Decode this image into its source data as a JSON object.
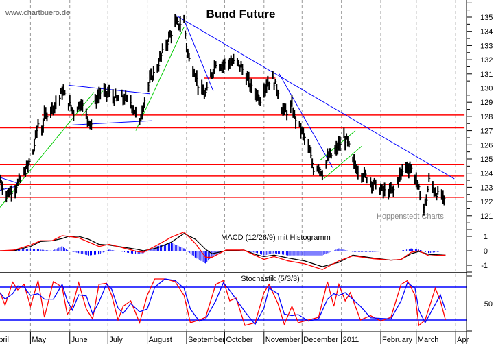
{
  "source_label": "www.chartbuero.de",
  "watermark": "Hoppenstedt Charts",
  "colors": {
    "bar": "#000000",
    "support": "#ff0000",
    "trend": "#0000ff",
    "channel": "#00cc00",
    "grid": "#999999"
  },
  "chart_data": [
    {
      "type": "ohlc-bar",
      "title": "Bund Future",
      "ylim": [
        120,
        136
      ],
      "y_ticks": [
        "121",
        "122",
        "123",
        "124",
        "125",
        "126",
        "127",
        "128",
        "129",
        "130",
        "131",
        "132",
        "133",
        "134",
        "135"
      ],
      "x_ticks": [
        {
          "date": "2010-04-01",
          "label": "April"
        },
        {
          "date": "2010-05-01",
          "label": "May"
        },
        {
          "date": "2010-06-01",
          "label": "June"
        },
        {
          "date": "2010-07-01",
          "label": "July"
        },
        {
          "date": "2010-08-01",
          "label": "August"
        },
        {
          "date": "2010-09-01",
          "label": "September"
        },
        {
          "date": "2010-10-01",
          "label": "October"
        },
        {
          "date": "2010-11-01",
          "label": "November"
        },
        {
          "date": "2010-12-01",
          "label": "December"
        },
        {
          "date": "2011-01-01",
          "label": "2011"
        },
        {
          "date": "2011-02-01",
          "label": "February"
        },
        {
          "date": "2011-03-01",
          "label": "March"
        },
        {
          "date": "2011-04-01",
          "label": "Apr"
        }
      ],
      "close": [
        [
          "2010-04-07",
          123.5
        ],
        [
          "2010-04-12",
          122.5
        ],
        [
          "2010-04-19",
          123
        ],
        [
          "2010-04-23",
          123.5
        ],
        [
          "2010-04-29",
          124.5
        ],
        [
          "2010-05-03",
          125.5
        ],
        [
          "2010-05-07",
          127.5
        ],
        [
          "2010-05-10",
          127
        ],
        [
          "2010-05-12",
          128
        ],
        [
          "2010-05-17",
          128.5
        ],
        [
          "2010-05-24",
          129.3
        ],
        [
          "2010-05-26",
          129.8
        ],
        [
          "2010-05-31",
          129
        ],
        [
          "2010-06-04",
          128.3
        ],
        [
          "2010-06-10",
          129
        ],
        [
          "2010-06-14",
          128
        ],
        [
          "2010-06-18",
          127.5
        ],
        [
          "2010-06-21",
          129
        ],
        [
          "2010-06-25",
          129.7
        ],
        [
          "2010-07-02",
          129.6
        ],
        [
          "2010-07-08",
          129.2
        ],
        [
          "2010-07-13",
          129.3
        ],
        [
          "2010-07-19",
          129
        ],
        [
          "2010-07-23",
          128.2
        ],
        [
          "2010-07-26",
          127.5
        ],
        [
          "2010-07-28",
          128.5
        ],
        [
          "2010-08-03",
          130.5
        ],
        [
          "2010-08-09",
          131.5
        ],
        [
          "2010-08-13",
          132.5
        ],
        [
          "2010-08-18",
          133.5
        ],
        [
          "2010-08-23",
          134.5
        ],
        [
          "2010-08-26",
          134.5
        ],
        [
          "2010-08-30",
          134.7
        ],
        [
          "2010-09-01",
          133
        ],
        [
          "2010-09-03",
          132
        ],
        [
          "2010-09-08",
          131
        ],
        [
          "2010-09-10",
          130.2
        ],
        [
          "2010-09-13",
          129.8
        ],
        [
          "2010-09-15",
          129.5
        ],
        [
          "2010-09-17",
          129.8
        ],
        [
          "2010-09-20",
          130.8
        ],
        [
          "2010-09-24",
          131.8
        ],
        [
          "2010-09-28",
          131.6
        ],
        [
          "2010-10-05",
          131.8
        ],
        [
          "2010-10-11",
          131.8
        ],
        [
          "2010-10-14",
          131.5
        ],
        [
          "2010-10-18",
          130.8
        ],
        [
          "2010-10-22",
          130
        ],
        [
          "2010-10-27",
          129.5
        ],
        [
          "2010-10-29",
          129.2
        ],
        [
          "2010-11-01",
          130
        ],
        [
          "2010-11-05",
          130.5
        ],
        [
          "2010-11-08",
          130.6
        ],
        [
          "2010-11-12",
          129.8
        ],
        [
          "2010-11-15",
          128.5
        ],
        [
          "2010-11-19",
          128.3
        ],
        [
          "2010-11-23",
          128.7
        ],
        [
          "2010-11-25",
          128
        ],
        [
          "2010-11-29",
          127.3
        ],
        [
          "2010-12-03",
          126.5
        ],
        [
          "2010-12-07",
          125.5
        ],
        [
          "2010-12-10",
          124.3
        ],
        [
          "2010-12-14",
          124.5
        ],
        [
          "2010-12-17",
          124
        ],
        [
          "2010-12-21",
          125
        ],
        [
          "2010-12-27",
          125.5
        ],
        [
          "2010-12-29",
          125.8
        ],
        [
          "2011-01-03",
          126.5
        ],
        [
          "2011-01-06",
          126.2
        ],
        [
          "2011-01-10",
          124.8
        ],
        [
          "2011-01-14",
          124.2
        ],
        [
          "2011-01-20",
          123.8
        ],
        [
          "2011-01-26",
          123.3
        ],
        [
          "2011-02-01",
          122.8
        ],
        [
          "2011-02-07",
          122.6
        ],
        [
          "2011-02-11",
          122.8
        ],
        [
          "2011-02-17",
          124
        ],
        [
          "2011-02-21",
          124.5
        ],
        [
          "2011-02-25",
          124.3
        ],
        [
          "2011-03-01",
          123.5
        ],
        [
          "2011-03-03",
          122.8
        ],
        [
          "2011-03-07",
          121.6
        ],
        [
          "2011-03-09",
          122.2
        ],
        [
          "2011-03-11",
          123.5
        ],
        [
          "2011-03-15",
          122.8
        ],
        [
          "2011-03-18",
          122.5
        ],
        [
          "2011-03-21",
          122.4
        ],
        [
          "2011-03-23",
          122
        ]
      ],
      "support_resistance": [
        {
          "price": 128.1,
          "from": "2010-05-10",
          "to": "2011-04-08"
        },
        {
          "price": 127.2,
          "from": "2010-04-07",
          "to": "2011-04-08"
        },
        {
          "price": 124.6,
          "from": "2010-04-07",
          "to": "2011-04-08"
        },
        {
          "price": 123.8,
          "from": "2010-04-07",
          "to": "2011-04-08"
        },
        {
          "price": 123.2,
          "from": "2010-04-07",
          "to": "2011-04-08"
        },
        {
          "price": 122.3,
          "from": "2010-04-07",
          "to": "2011-04-08"
        },
        {
          "price": 130.7,
          "from": "2010-09-15",
          "to": "2010-11-10"
        }
      ],
      "trendlines": [
        {
          "color": "trend",
          "p1": [
            "2010-08-24",
            135.1
          ],
          "p2": [
            "2011-03-31",
            123.6
          ]
        },
        {
          "color": "trend",
          "p1": [
            "2010-08-30",
            134.8
          ],
          "p2": [
            "2010-09-22",
            129.8
          ]
        },
        {
          "color": "trend",
          "p1": [
            "2010-11-13",
            131.0
          ],
          "p2": [
            "2010-12-25",
            124.4
          ]
        },
        {
          "color": "trend",
          "p1": [
            "2010-05-31",
            130.2
          ],
          "p2": [
            "2010-08-03",
            129.6
          ]
        },
        {
          "color": "trend",
          "p1": [
            "2010-06-03",
            127.4
          ],
          "p2": [
            "2010-08-05",
            127.7
          ]
        },
        {
          "color": "trend",
          "p1": [
            "2010-04-07",
            123.7
          ],
          "p2": [
            "2010-04-21",
            123.3
          ]
        },
        {
          "color": "trend",
          "p1": [
            "2010-04-07",
            122.8
          ],
          "p2": [
            "2010-04-21",
            123.1
          ]
        },
        {
          "color": "channel",
          "p1": [
            "2010-04-07",
            121.6
          ],
          "p2": [
            "2010-06-20",
            129.7
          ]
        },
        {
          "color": "channel",
          "p1": [
            "2010-06-10",
            128.0
          ],
          "p2": [
            "2010-06-27",
            129.8
          ]
        },
        {
          "color": "channel",
          "p1": [
            "2010-07-23",
            127.0
          ],
          "p2": [
            "2010-08-30",
            134.3
          ]
        },
        {
          "color": "channel",
          "p1": [
            "2010-12-15",
            124.9
          ],
          "p2": [
            "2011-01-12",
            127.0
          ]
        },
        {
          "color": "channel",
          "p1": [
            "2010-12-18",
            123.6
          ],
          "p2": [
            "2011-01-17",
            125.9
          ]
        }
      ]
    },
    {
      "type": "line",
      "title": "MACD (12/26/9) mit Histogramm",
      "ylim": [
        -1.5,
        1.5
      ],
      "y_ticks": [
        "1",
        "0",
        "-1"
      ],
      "dates": [
        "2010-04-07",
        "2010-04-18",
        "2010-05-01",
        "2010-05-09",
        "2010-05-18",
        "2010-05-26",
        "2010-05-31",
        "2010-06-08",
        "2010-06-16",
        "2010-06-24",
        "2010-07-02",
        "2010-07-13",
        "2010-07-24",
        "2010-07-29",
        "2010-08-09",
        "2010-08-20",
        "2010-08-30",
        "2010-09-08",
        "2010-09-16",
        "2010-09-21",
        "2010-10-02",
        "2010-10-16",
        "2010-10-27",
        "2010-11-01",
        "2010-11-09",
        "2010-11-20",
        "2010-12-03",
        "2010-12-17",
        "2010-12-30",
        "2011-01-10",
        "2011-01-26",
        "2011-02-09",
        "2011-02-17",
        "2011-02-25",
        "2011-03-03",
        "2011-03-11",
        "2011-03-24"
      ],
      "series": [
        {
          "color": "#000000",
          "values": [
            0,
            0,
            0.3,
            0.65,
            0.7,
            0.85,
            1.0,
            1.0,
            0.8,
            0.45,
            0.4,
            0.25,
            0.1,
            0,
            0.2,
            0.6,
            1.2,
            0.8,
            0.1,
            -0.2,
            0,
            0.05,
            -0.3,
            -0.4,
            -0.3,
            -0.5,
            -0.7,
            -1.1,
            -0.8,
            -0.3,
            -0.5,
            -0.65,
            -0.6,
            -0.2,
            -0.05,
            -0.25,
            -0.3
          ]
        },
        {
          "color": "#ff0000",
          "values": [
            0,
            0.05,
            0.4,
            0.7,
            0.7,
            1.05,
            1.0,
            0.9,
            0.6,
            0.3,
            0.45,
            0.2,
            -0.05,
            -0.1,
            0.4,
            0.95,
            1.3,
            0.5,
            -0.45,
            -0.45,
            0.05,
            0.05,
            -0.4,
            -0.6,
            -0.4,
            -0.7,
            -0.9,
            -1.3,
            -0.7,
            -0.35,
            -0.55,
            -0.65,
            -0.6,
            -0.1,
            0,
            -0.35,
            -0.3
          ]
        }
      ],
      "histogram_color": "#0000ff"
    },
    {
      "type": "line",
      "title": "Stochastik (5/3/3)",
      "ylim": [
        0,
        100
      ],
      "y_ticks": [
        "50"
      ],
      "levels": [
        20,
        80
      ],
      "dates": [
        "2010-04-07",
        "2010-04-11",
        "2010-04-17",
        "2010-04-21",
        "2010-04-26",
        "2010-05-01",
        "2010-05-07",
        "2010-05-12",
        "2010-05-19",
        "2010-05-26",
        "2010-05-30",
        "2010-06-03",
        "2010-06-08",
        "2010-06-14",
        "2010-06-19",
        "2010-06-24",
        "2010-06-30",
        "2010-07-04",
        "2010-07-09",
        "2010-07-13",
        "2010-07-19",
        "2010-07-26",
        "2010-08-01",
        "2010-08-07",
        "2010-08-15",
        "2010-08-23",
        "2010-08-30",
        "2010-09-04",
        "2010-09-11",
        "2010-09-16",
        "2010-09-24",
        "2010-09-30",
        "2010-10-05",
        "2010-10-10",
        "2010-10-17",
        "2010-10-25",
        "2010-11-01",
        "2010-11-05",
        "2010-11-12",
        "2010-11-17",
        "2010-11-23",
        "2010-11-28",
        "2010-12-06",
        "2010-12-14",
        "2010-12-21",
        "2010-12-26",
        "2010-12-30",
        "2011-01-04",
        "2011-01-08",
        "2011-01-16",
        "2011-01-24",
        "2011-02-01",
        "2011-02-09",
        "2011-02-17",
        "2011-02-22",
        "2011-02-28",
        "2011-03-03",
        "2011-03-08",
        "2011-03-16",
        "2011-03-20",
        "2011-03-24"
      ],
      "series": [
        {
          "color": "#ff0000",
          "values": [
            70,
            47,
            89,
            75,
            85,
            45,
            92,
            25,
            90,
            80,
            30,
            45,
            88,
            40,
            22,
            85,
            87,
            65,
            20,
            45,
            55,
            15,
            65,
            95,
            95,
            90,
            65,
            15,
            20,
            25,
            85,
            92,
            55,
            60,
            10,
            15,
            70,
            85,
            50,
            12,
            45,
            15,
            20,
            25,
            90,
            45,
            85,
            55,
            70,
            20,
            28,
            18,
            25,
            85,
            92,
            65,
            10,
            20,
            78,
            55,
            20
          ]
        },
        {
          "color": "#0000ff",
          "values": [
            70,
            58,
            68,
            82,
            80,
            65,
            68,
            58,
            58,
            85,
            55,
            38,
            66,
            64,
            31,
            53,
            86,
            76,
            42,
            32,
            50,
            35,
            40,
            80,
            95,
            92,
            78,
            40,
            18,
            22,
            55,
            88,
            74,
            58,
            35,
            12,
            42,
            78,
            68,
            31,
            28,
            30,
            18,
            22,
            58,
            68,
            65,
            70,
            62,
            45,
            24,
            23,
            22,
            55,
            88,
            78,
            38,
            15,
            49,
            66,
            38
          ]
        }
      ]
    }
  ]
}
